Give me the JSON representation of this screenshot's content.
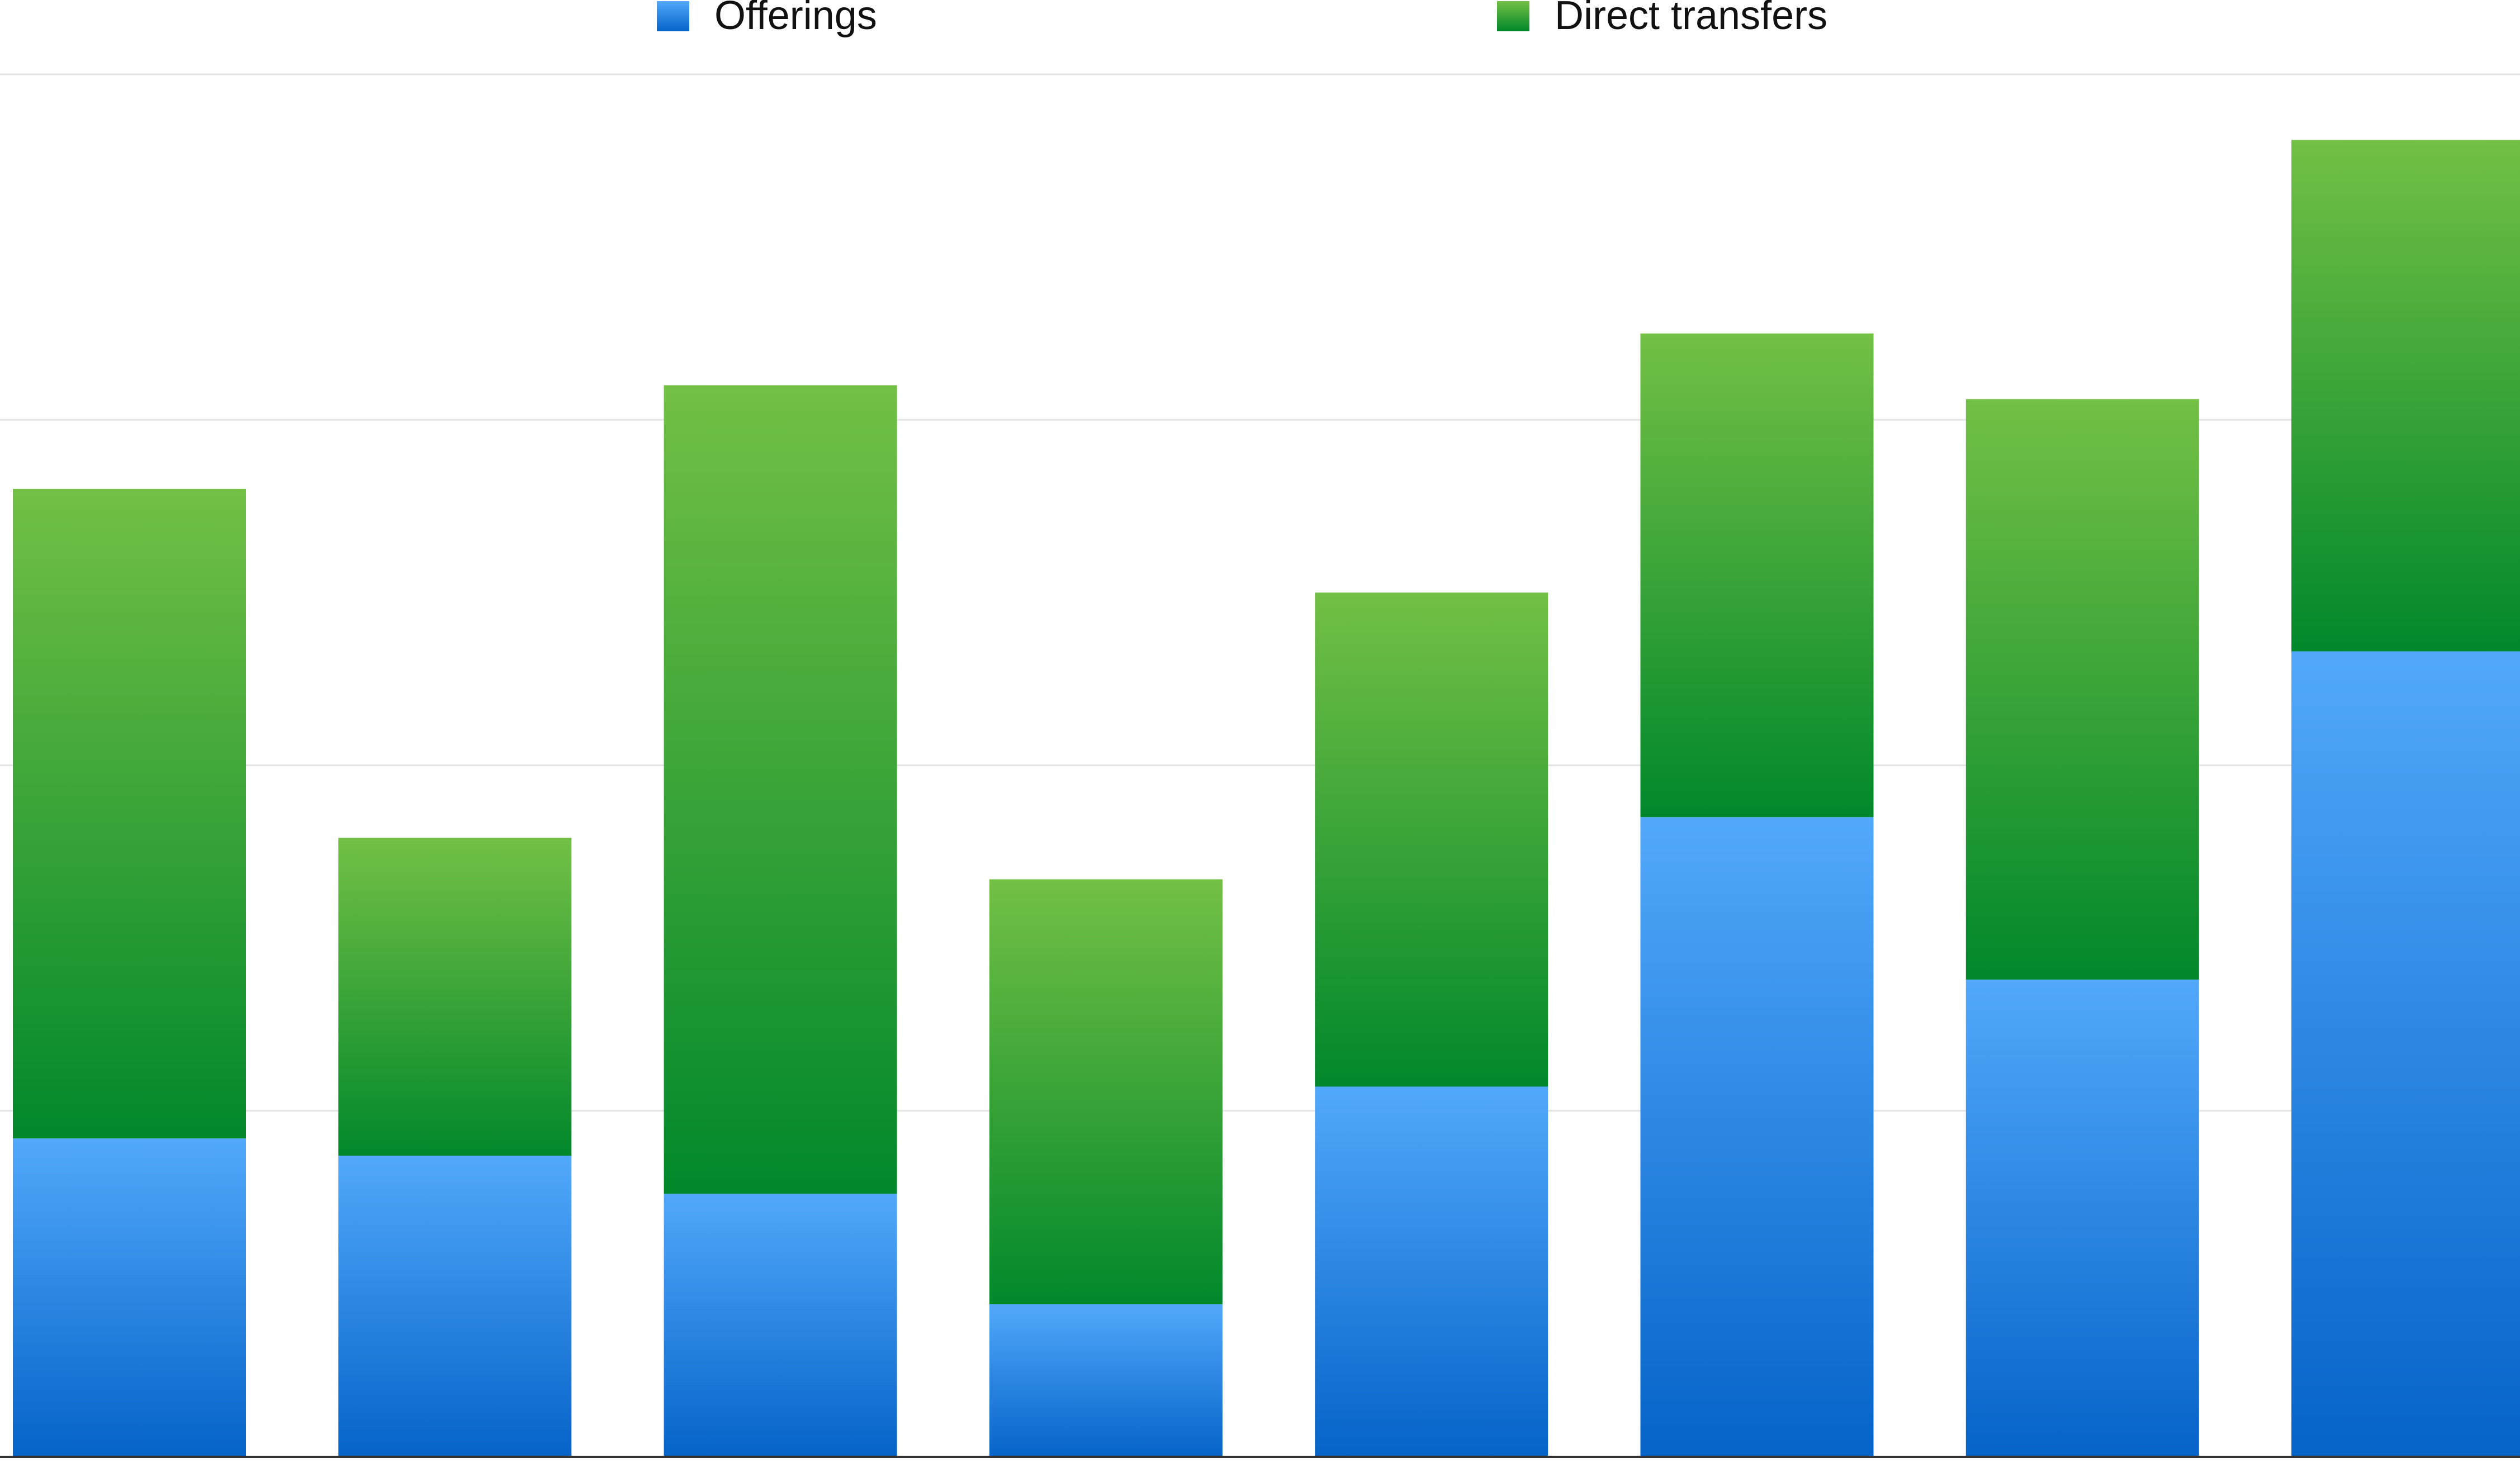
{
  "chart_data": {
    "type": "bar",
    "stacked": true,
    "categories": [
      "",
      "",
      "",
      "",
      "",
      "",
      "",
      ""
    ],
    "series": [
      {
        "name": "Offerings",
        "values": [
          9.2,
          8.7,
          7.6,
          4.4,
          10.7,
          18.5,
          13.8,
          23.3
        ],
        "color": "#2b88e6"
      },
      {
        "name": "Direct transfers",
        "values": [
          18.8,
          9.2,
          23.4,
          12.3,
          14.3,
          14.0,
          16.8,
          14.8
        ],
        "color": "#1f9a3a"
      }
    ],
    "ylim": [
      0,
      40
    ],
    "grid": true,
    "legend_position": "top",
    "title": "",
    "xlabel": "",
    "ylabel": ""
  }
}
